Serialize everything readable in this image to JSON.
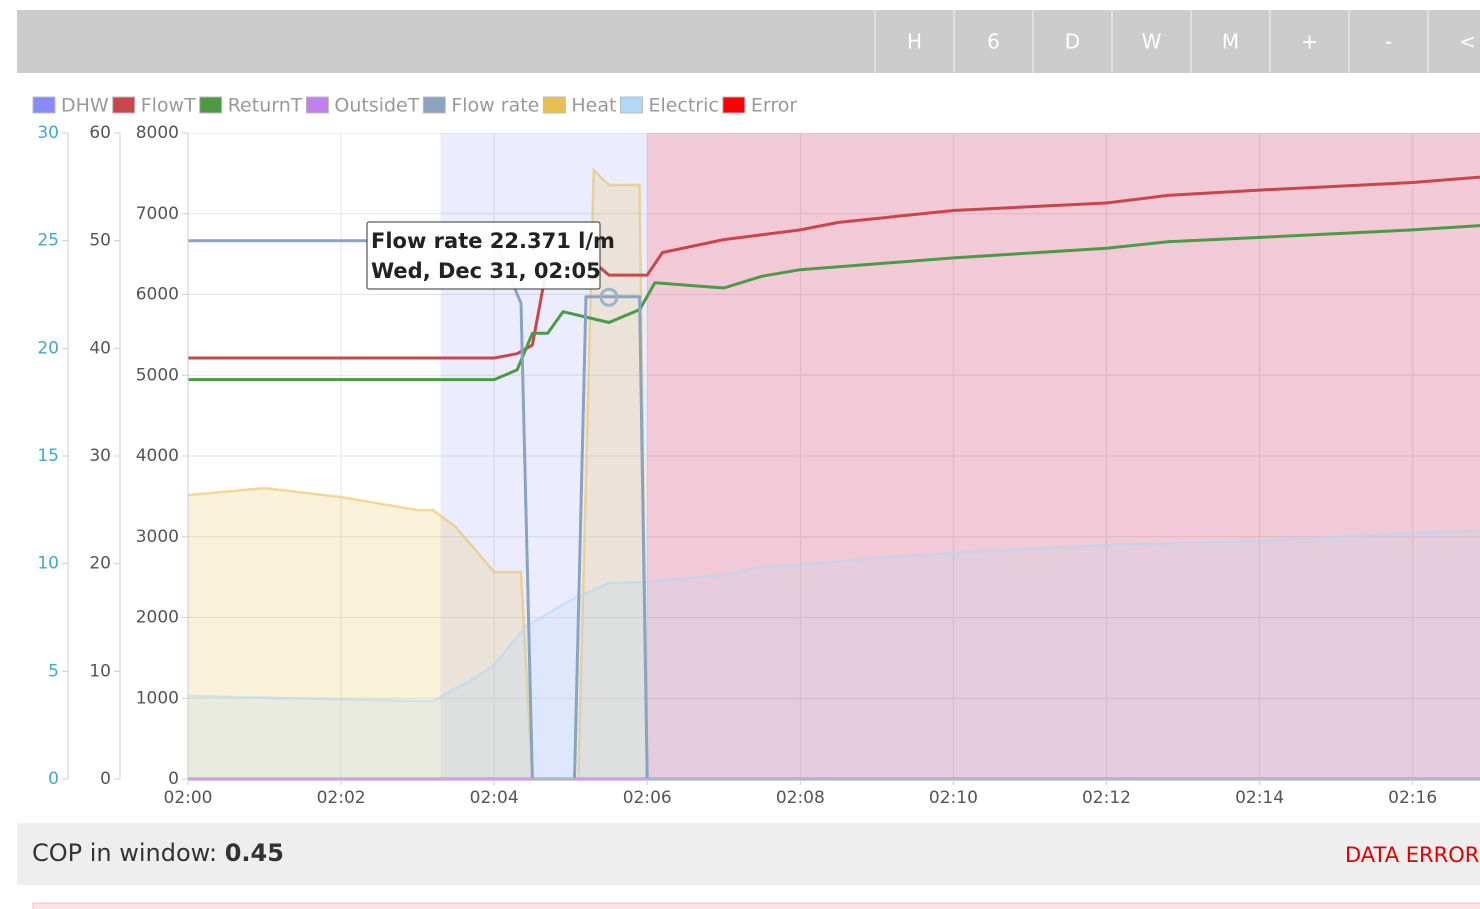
{
  "toolbar": {
    "buttons": [
      "H",
      "6",
      "D",
      "W",
      "M",
      "+",
      "-",
      "<"
    ]
  },
  "chart_data": {
    "type": "line",
    "xlim": [
      0,
      16.88
    ],
    "xticks": [
      {
        "value": 0,
        "label": "02:00"
      },
      {
        "value": 2,
        "label": "02:02"
      },
      {
        "value": 4,
        "label": "02:04"
      },
      {
        "value": 6,
        "label": "02:06"
      },
      {
        "value": 8,
        "label": "02:08"
      },
      {
        "value": 10,
        "label": "02:10"
      },
      {
        "value": 12,
        "label": "02:12"
      },
      {
        "value": 14,
        "label": "02:14"
      },
      {
        "value": 16,
        "label": "02:16"
      }
    ],
    "ylim": [
      0,
      60
    ],
    "yticks": [
      0,
      10,
      20,
      30,
      40,
      50,
      60
    ],
    "y2lim": [
      0,
      8000
    ],
    "y2ticks": [
      0,
      1000,
      2000,
      3000,
      4000,
      5000,
      6000,
      7000,
      8000
    ],
    "y3lim": [
      0,
      30
    ],
    "y3ticks": [
      0,
      5,
      10,
      15,
      20,
      25,
      30
    ],
    "grid": true,
    "series": [
      {
        "name": "DHW",
        "color": "#8a8aff",
        "kind": "band",
        "ranges": [
          {
            "start": 3.3,
            "end": 6.0
          }
        ]
      },
      {
        "name": "FlowT",
        "color": "#c8474a",
        "kind": "line",
        "axis": "y",
        "x": [
          0,
          4,
          4.3,
          4.5,
          4.7,
          5.3,
          5.5,
          6.0,
          6.2,
          7.0,
          8.0,
          8.5,
          10,
          12,
          12.8,
          14,
          16,
          16.88
        ],
        "values": [
          39.1,
          39.1,
          39.5,
          40.3,
          48.0,
          48.0,
          46.8,
          46.8,
          48.9,
          50.1,
          51.0,
          51.7,
          52.8,
          53.5,
          54.2,
          54.7,
          55.4,
          55.9
        ]
      },
      {
        "name": "ReturnT",
        "color": "#4c9a46",
        "kind": "line",
        "axis": "y",
        "x": [
          0,
          4,
          4.3,
          4.5,
          4.7,
          4.9,
          5.5,
          5.9,
          6.1,
          7.0,
          7.5,
          8.0,
          10,
          12,
          12.8,
          14,
          16,
          16.88
        ],
        "values": [
          37.1,
          37.1,
          38.0,
          41.4,
          41.4,
          43.4,
          42.4,
          43.6,
          46.1,
          45.6,
          46.7,
          47.3,
          48.4,
          49.3,
          49.9,
          50.3,
          51.0,
          51.4
        ]
      },
      {
        "name": "OutsideT",
        "color": "#c080f0",
        "kind": "line",
        "axis": "y",
        "x": [
          0,
          16.88
        ],
        "values": [
          0,
          0
        ]
      },
      {
        "name": "Flow rate",
        "color": "#8aa4c0",
        "kind": "line",
        "axis": "y3",
        "x": [
          0,
          4.0,
          4.35,
          4.5,
          5.05,
          5.2,
          5.9,
          6.0,
          16.88
        ],
        "values": [
          25.0,
          25.0,
          22.1,
          0,
          0,
          22.4,
          22.4,
          0,
          0
        ]
      },
      {
        "name": "Heat",
        "color": "#e8c050",
        "kind": "area",
        "axis": "y2",
        "x": [
          0,
          1,
          2,
          3,
          3.2,
          3.5,
          4.0,
          4.35,
          4.5,
          5.1,
          5.3,
          5.5,
          5.9,
          6.0,
          16.88
        ],
        "values": [
          3517,
          3604,
          3492,
          3331,
          3331,
          3121,
          2563,
          2563,
          0,
          0,
          7542,
          7356,
          7356,
          0,
          0
        ]
      },
      {
        "name": "Electric",
        "color": "#b0d8f8",
        "kind": "area",
        "axis": "y2",
        "x": [
          0,
          3,
          3.2,
          3.7,
          4.0,
          4.4,
          5.0,
          5.5,
          6.0,
          7.0,
          7.5,
          8.0,
          9.0,
          10,
          12,
          14,
          16,
          16.88
        ],
        "values": [
          1028,
          966,
          966,
          1226,
          1412,
          1882,
          2217,
          2427,
          2440,
          2526,
          2625,
          2650,
          2737,
          2799,
          2898,
          2947,
          3046,
          3071
        ]
      },
      {
        "name": "Error",
        "color": "#ff0000",
        "kind": "band",
        "ranges": [
          {
            "start": 6.0,
            "end": 16.88
          }
        ]
      }
    ],
    "tooltip": {
      "lines": [
        "Flow rate 22.371 l/m",
        "Wed, Dec 31, 02:05"
      ],
      "x": 5.5,
      "y": 22.371,
      "axis": "y3"
    }
  },
  "footer": {
    "cop_label": "COP in window:",
    "cop_value": "0.45",
    "status": "DATA ERROR"
  }
}
